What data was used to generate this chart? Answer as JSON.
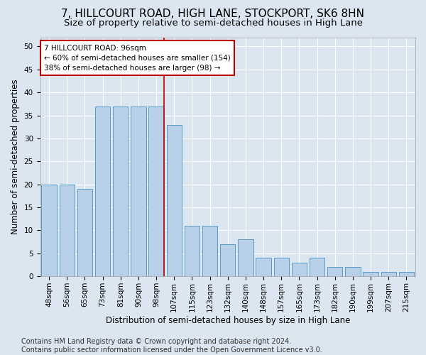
{
  "title": "7, HILLCOURT ROAD, HIGH LANE, STOCKPORT, SK6 8HN",
  "subtitle": "Size of property relative to semi-detached houses in High Lane",
  "xlabel": "Distribution of semi-detached houses by size in High Lane",
  "ylabel": "Number of semi-detached properties",
  "categories": [
    "48sqm",
    "56sqm",
    "65sqm",
    "73sqm",
    "81sqm",
    "90sqm",
    "98sqm",
    "107sqm",
    "115sqm",
    "123sqm",
    "132sqm",
    "140sqm",
    "148sqm",
    "157sqm",
    "165sqm",
    "173sqm",
    "182sqm",
    "190sqm",
    "199sqm",
    "207sqm",
    "215sqm"
  ],
  "values": [
    20,
    20,
    19,
    37,
    37,
    37,
    37,
    33,
    11,
    11,
    7,
    8,
    4,
    4,
    3,
    4,
    2,
    2,
    1,
    1,
    1
  ],
  "bar_color": "#b8d0e8",
  "bar_edge_color": "#5a9ac8",
  "highlight_index": 6,
  "highlight_color": "#c00000",
  "annotation_line1": "7 HILLCOURT ROAD: 96sqm",
  "annotation_line2": "← 60% of semi-detached houses are smaller (154)",
  "annotation_line3": "38% of semi-detached houses are larger (98) →",
  "annotation_box_color": "#ffffff",
  "annotation_box_edge": "#c00000",
  "bg_color": "#dce6f0",
  "plot_bg_color": "#dce6f0",
  "footer": "Contains HM Land Registry data © Crown copyright and database right 2024.\nContains public sector information licensed under the Open Government Licence v3.0.",
  "ylim": [
    0,
    52
  ],
  "yticks": [
    0,
    5,
    10,
    15,
    20,
    25,
    30,
    35,
    40,
    45,
    50
  ],
  "title_fontsize": 11,
  "subtitle_fontsize": 9.5,
  "axis_label_fontsize": 8.5,
  "tick_fontsize": 7.5,
  "footer_fontsize": 7
}
